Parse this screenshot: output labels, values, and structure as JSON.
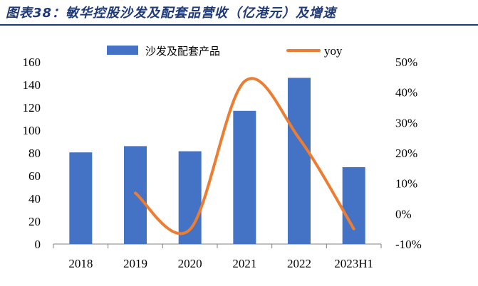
{
  "title": "图表38：敏华控股沙发及配套品营收（亿港元）及增速",
  "chart_data": {
    "type": "bar",
    "categories": [
      "2018",
      "2019",
      "2020",
      "2021",
      "2022",
      "2023H1"
    ],
    "series": [
      {
        "name": "沙发及配套产品",
        "type": "bar",
        "axis": "left",
        "color": "#4472c4",
        "values": [
          80.5,
          86.0,
          81.5,
          117.0,
          146.0,
          67.5
        ]
      },
      {
        "name": "yoy",
        "type": "line",
        "axis": "right",
        "color": "#ed7d31",
        "unit": "%",
        "values": [
          null,
          6.8,
          -5.2,
          43.6,
          24.8,
          -5.0
        ]
      }
    ],
    "y_left": {
      "min": 0,
      "max": 160,
      "step": 20,
      "tick_labels": [
        "0",
        "20",
        "40",
        "60",
        "80",
        "100",
        "120",
        "140",
        "160"
      ]
    },
    "y_right": {
      "min": -10,
      "max": 50,
      "step": 10,
      "tick_labels": [
        "-10%",
        "0%",
        "10%",
        "20%",
        "30%",
        "40%",
        "50%"
      ]
    },
    "legend": {
      "placement": "top",
      "items": [
        "沙发及配套产品",
        "yoy"
      ]
    },
    "grid": false
  }
}
